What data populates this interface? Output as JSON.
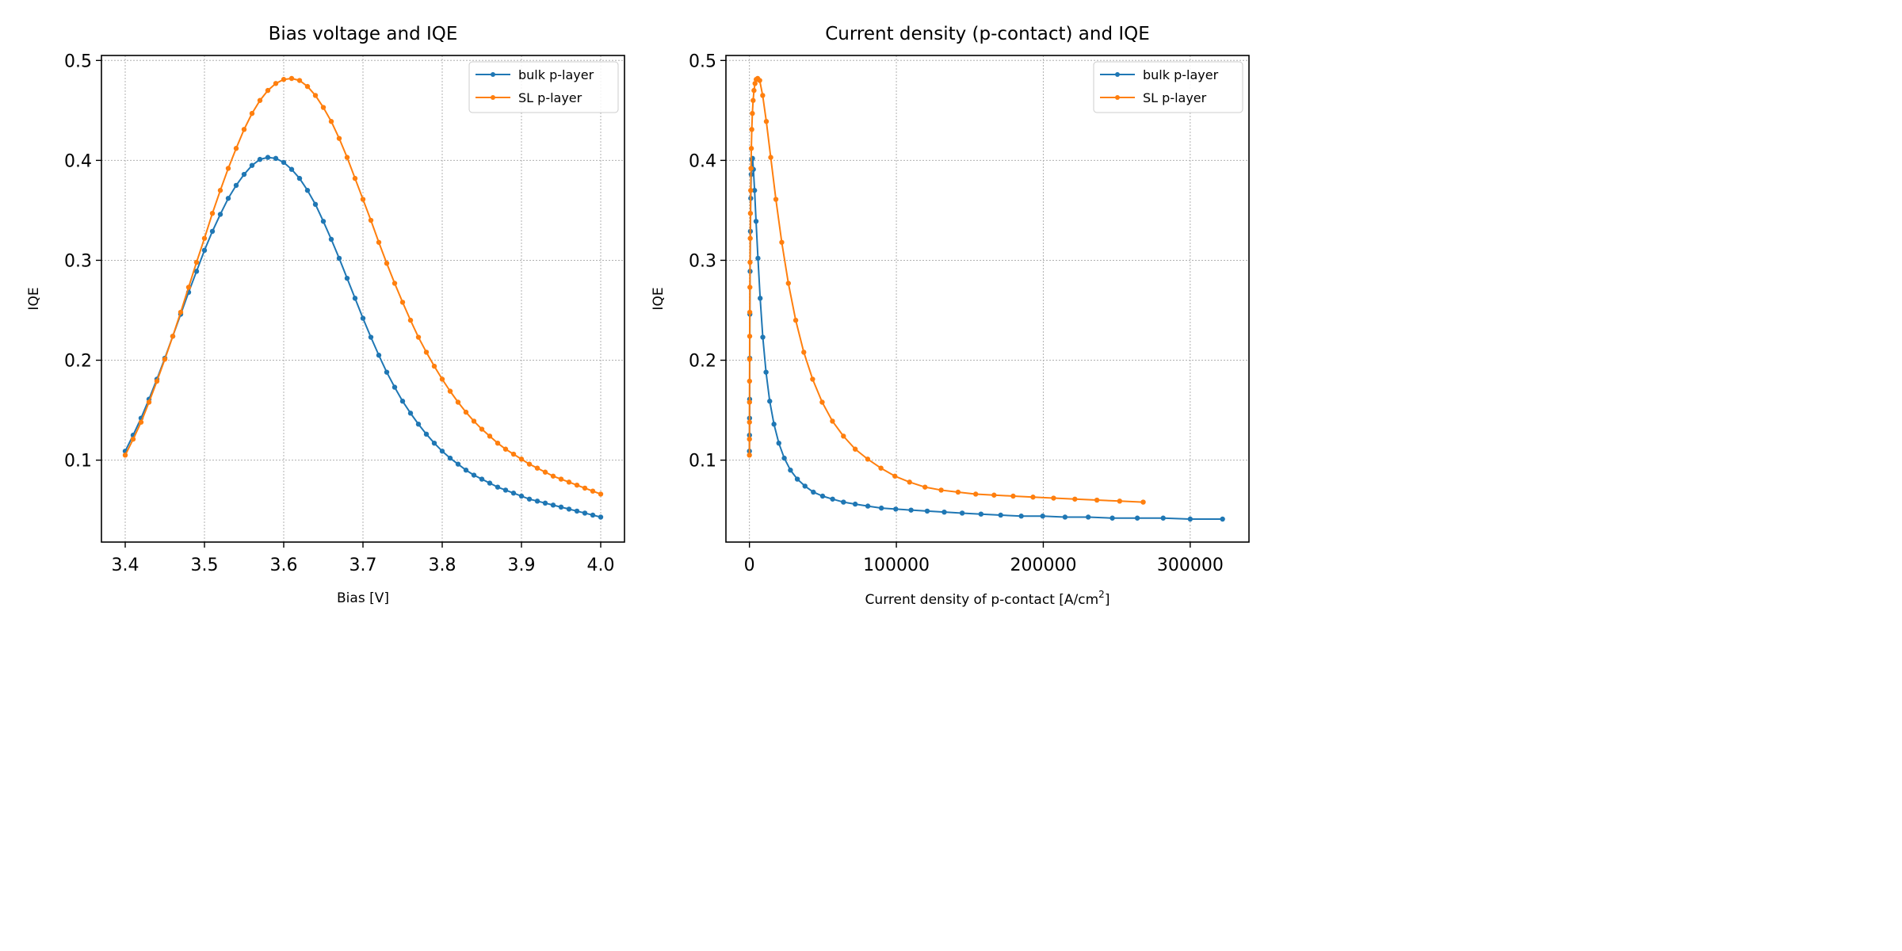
{
  "colors": {
    "bulk": "#1f77b4",
    "sl": "#ff7f0e"
  },
  "chart_data": [
    {
      "type": "line",
      "title": "Bias voltage and IQE",
      "xlabel": "Bias [V]",
      "ylabel": "IQE",
      "xlim": [
        3.37,
        4.03
      ],
      "ylim": [
        0.018,
        0.505
      ],
      "xticks": [
        "3.4",
        "3.5",
        "3.6",
        "3.7",
        "3.8",
        "3.9",
        "4.0"
      ],
      "yticks": [
        "0.1",
        "0.2",
        "0.3",
        "0.4",
        "0.5"
      ],
      "grid": true,
      "legend": "top-right",
      "legend_entries": [
        "bulk p-layer",
        "SL p-layer"
      ],
      "series": [
        {
          "name": "bulk p-layer",
          "x": [
            3.4,
            3.41,
            3.42,
            3.43,
            3.44,
            3.45,
            3.46,
            3.47,
            3.48,
            3.49,
            3.5,
            3.51,
            3.52,
            3.53,
            3.54,
            3.55,
            3.56,
            3.57,
            3.58,
            3.59,
            3.6,
            3.61,
            3.62,
            3.63,
            3.64,
            3.65,
            3.66,
            3.67,
            3.68,
            3.69,
            3.7,
            3.71,
            3.72,
            3.73,
            3.74,
            3.75,
            3.76,
            3.77,
            3.78,
            3.79,
            3.8,
            3.81,
            3.82,
            3.83,
            3.84,
            3.85,
            3.86,
            3.87,
            3.88,
            3.89,
            3.9,
            3.91,
            3.92,
            3.93,
            3.94,
            3.95,
            3.96,
            3.97,
            3.98,
            3.99,
            4.0
          ],
          "y": [
            0.109,
            0.125,
            0.142,
            0.161,
            0.181,
            0.202,
            0.224,
            0.246,
            0.268,
            0.289,
            0.31,
            0.329,
            0.346,
            0.362,
            0.375,
            0.386,
            0.395,
            0.401,
            0.403,
            0.402,
            0.398,
            0.391,
            0.382,
            0.37,
            0.356,
            0.339,
            0.321,
            0.302,
            0.282,
            0.262,
            0.242,
            0.223,
            0.205,
            0.188,
            0.173,
            0.159,
            0.147,
            0.136,
            0.126,
            0.117,
            0.109,
            0.102,
            0.096,
            0.09,
            0.085,
            0.081,
            0.077,
            0.073,
            0.07,
            0.067,
            0.064,
            0.061,
            0.059,
            0.057,
            0.055,
            0.053,
            0.051,
            0.049,
            0.047,
            0.045,
            0.043
          ]
        },
        {
          "name": "SL p-layer",
          "x": [
            3.4,
            3.41,
            3.42,
            3.43,
            3.44,
            3.45,
            3.46,
            3.47,
            3.48,
            3.49,
            3.5,
            3.51,
            3.52,
            3.53,
            3.54,
            3.55,
            3.56,
            3.57,
            3.58,
            3.59,
            3.6,
            3.61,
            3.62,
            3.63,
            3.64,
            3.65,
            3.66,
            3.67,
            3.68,
            3.69,
            3.7,
            3.71,
            3.72,
            3.73,
            3.74,
            3.75,
            3.76,
            3.77,
            3.78,
            3.79,
            3.8,
            3.81,
            3.82,
            3.83,
            3.84,
            3.85,
            3.86,
            3.87,
            3.88,
            3.89,
            3.9,
            3.91,
            3.92,
            3.93,
            3.94,
            3.95,
            3.96,
            3.97,
            3.98,
            3.99,
            4.0
          ],
          "y": [
            0.105,
            0.121,
            0.138,
            0.158,
            0.179,
            0.201,
            0.224,
            0.248,
            0.273,
            0.298,
            0.322,
            0.347,
            0.37,
            0.392,
            0.412,
            0.431,
            0.447,
            0.46,
            0.47,
            0.477,
            0.481,
            0.482,
            0.48,
            0.474,
            0.465,
            0.453,
            0.439,
            0.422,
            0.403,
            0.382,
            0.361,
            0.34,
            0.318,
            0.297,
            0.277,
            0.258,
            0.24,
            0.223,
            0.208,
            0.194,
            0.181,
            0.169,
            0.158,
            0.148,
            0.139,
            0.131,
            0.124,
            0.117,
            0.111,
            0.106,
            0.101,
            0.096,
            0.092,
            0.088,
            0.084,
            0.081,
            0.078,
            0.075,
            0.072,
            0.069,
            0.066
          ]
        }
      ]
    },
    {
      "type": "line",
      "title": "Current density (p-contact) and IQE",
      "xlabel": "Current density of p-contact [A/cm",
      "xlabel_sup": "2",
      "xlabel_end": "]",
      "ylabel": "IQE",
      "xlim": [
        -16000,
        340000
      ],
      "ylim": [
        0.018,
        0.505
      ],
      "xticks": [
        "0",
        "100000",
        "200000",
        "300000"
      ],
      "yticks": [
        "0.1",
        "0.2",
        "0.3",
        "0.4",
        "0.5"
      ],
      "grid": true,
      "legend": "top-right",
      "legend_entries": [
        "bulk p-layer",
        "SL p-layer"
      ],
      "series": [
        {
          "name": "bulk p-layer",
          "x": [
            0,
            50,
            100,
            150,
            200,
            300,
            450,
            650,
            900,
            1200,
            1600,
            2100,
            2700,
            3500,
            4500,
            5800,
            7300,
            9100,
            11300,
            13800,
            16700,
            20000,
            23700,
            27900,
            32600,
            37800,
            43500,
            49800,
            56600,
            64000,
            72000,
            80600,
            89800,
            99600,
            110000,
            121000,
            132600,
            144800,
            157600,
            171000,
            185000,
            199600,
            214800,
            230600,
            247000,
            264000,
            281600,
            300000,
            322000
          ],
          "y": [
            0.109,
            0.125,
            0.142,
            0.161,
            0.202,
            0.246,
            0.289,
            0.329,
            0.362,
            0.386,
            0.401,
            0.402,
            0.391,
            0.37,
            0.339,
            0.302,
            0.262,
            0.223,
            0.188,
            0.159,
            0.136,
            0.117,
            0.102,
            0.09,
            0.081,
            0.074,
            0.068,
            0.064,
            0.061,
            0.058,
            0.056,
            0.054,
            0.052,
            0.051,
            0.05,
            0.049,
            0.048,
            0.047,
            0.046,
            0.045,
            0.044,
            0.044,
            0.043,
            0.043,
            0.042,
            0.042,
            0.042,
            0.041,
            0.041
          ]
        },
        {
          "name": "SL p-layer",
          "x": [
            0,
            20,
            40,
            60,
            90,
            130,
            180,
            240,
            320,
            420,
            540,
            680,
            850,
            1050,
            1300,
            1600,
            2000,
            2500,
            3100,
            3800,
            4600,
            5600,
            7000,
            9000,
            11500,
            14500,
            18000,
            22000,
            26500,
            31500,
            37000,
            43000,
            49500,
            56500,
            64000,
            72000,
            80500,
            89500,
            99000,
            109000,
            119500,
            130500,
            142000,
            154000,
            166500,
            179500,
            193000,
            207000,
            221500,
            236500,
            252000,
            268000
          ],
          "y": [
            0.105,
            0.121,
            0.138,
            0.158,
            0.179,
            0.201,
            0.224,
            0.248,
            0.273,
            0.298,
            0.322,
            0.347,
            0.37,
            0.392,
            0.412,
            0.431,
            0.447,
            0.46,
            0.47,
            0.477,
            0.481,
            0.482,
            0.48,
            0.465,
            0.439,
            0.403,
            0.361,
            0.318,
            0.277,
            0.24,
            0.208,
            0.181,
            0.158,
            0.139,
            0.124,
            0.111,
            0.101,
            0.092,
            0.084,
            0.078,
            0.073,
            0.07,
            0.068,
            0.066,
            0.065,
            0.064,
            0.063,
            0.062,
            0.061,
            0.06,
            0.059,
            0.058
          ]
        }
      ]
    }
  ]
}
